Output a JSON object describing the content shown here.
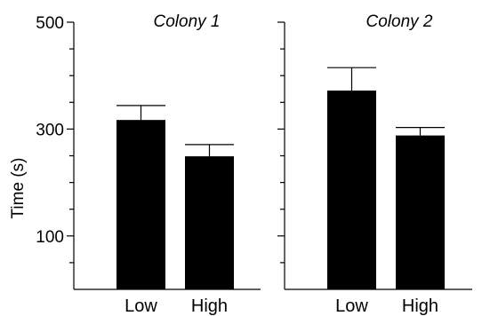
{
  "chart_data": [
    {
      "type": "bar",
      "title": "Colony 1",
      "categories": [
        "Low",
        "High"
      ],
      "values": [
        317,
        249
      ],
      "error": [
        27,
        22
      ],
      "ylabel": "Time (s)",
      "yticks": [
        "500",
        "300",
        "100"
      ],
      "ylim": [
        0,
        500
      ],
      "color": "#000000"
    },
    {
      "type": "bar",
      "title": "Colony 2",
      "categories": [
        "Low",
        "High"
      ],
      "values": [
        372,
        288
      ],
      "error": [
        43,
        15
      ],
      "ylabel": "",
      "ylim": [
        0,
        500
      ],
      "color": "#000000"
    }
  ]
}
